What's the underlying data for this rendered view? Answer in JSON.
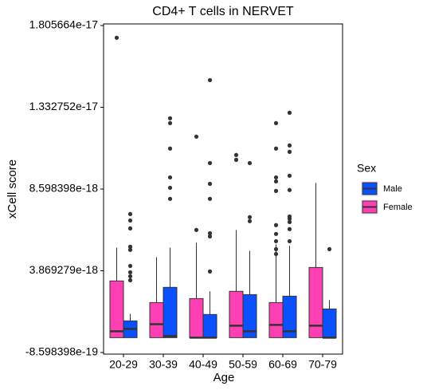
{
  "chart_data": {
    "type": "box",
    "title": "CD4+ T cells in NERVET",
    "x_label": "Age",
    "y_label": "xCell score",
    "legend_title": "Sex",
    "legend_position": "right",
    "grid": false,
    "categories": [
      "20-29",
      "30-39",
      "40-49",
      "50-59",
      "60-69",
      "70-79"
    ],
    "ylim": [
      -9.52e-19,
      1.815e-17
    ],
    "yticks": [
      {
        "value": -8.598398e-19,
        "label": "-8.598398e-19"
      },
      {
        "value": 3.869279e-18,
        "label": "3.869279e-18"
      },
      {
        "value": 8.598398e-18,
        "label": "8.598398e-18"
      },
      {
        "value": 1.332752e-17,
        "label": "1.332752e-17"
      },
      {
        "value": 1.805664e-17,
        "label": "1.805664e-17"
      }
    ],
    "series": [
      {
        "name": "Female",
        "color": "#ff40b4",
        "min": [
          0,
          0,
          0,
          0,
          0,
          0
        ],
        "q1": [
          0,
          0,
          0,
          0,
          0,
          0
        ],
        "median": [
          3.7e-19,
          7.8e-19,
          0,
          6.9e-19,
          7.4e-19,
          6.9e-19
        ],
        "q3": [
          3.28e-18,
          2.03e-18,
          2.26e-18,
          2.68e-18,
          2.03e-18,
          4.06e-18
        ],
        "max": [
          5.21e-18,
          4.66e-18,
          5.49e-18,
          6.23e-18,
          5.4e-18,
          8.95e-18
        ],
        "outliers": [
          [
            1.735e-17
          ],
          [],
          [
            1.163e-17,
            6.23e-18
          ],
          [
            1.057e-17,
            1.029e-17
          ],
          [
            1.241e-17,
            1.094e-17,
            9.27e-18,
            9.04e-18,
            8.49e-18,
            6.51e-18,
            6e-18,
            5.58e-18,
            5.12e-18,
            4.84e-18
          ],
          []
        ]
      },
      {
        "name": "Male",
        "color": "#0a50ff",
        "min": [
          0,
          0,
          0,
          0,
          0,
          0
        ],
        "q1": [
          0,
          0,
          0,
          0,
          0,
          0
        ],
        "median": [
          5.1e-19,
          9e-20,
          0,
          3.7e-19,
          3.7e-19,
          0
        ],
        "q3": [
          9.7e-19,
          2.91e-18,
          1.34e-18,
          2.49e-18,
          2.4e-18,
          1.66e-18
        ],
        "max": [
          1.38e-18,
          5.21e-18,
          2.68e-18,
          5.03e-18,
          5.31e-18,
          2.17e-18
        ],
        "outliers": [
          [
            7.15e-18,
            6.78e-18,
            6.32e-18,
            5.26e-18,
            5.08e-18,
            4.15e-18,
            3.78e-18,
            3.55e-18,
            3.32e-18
          ],
          [
            1.269e-17,
            1.241e-17,
            1.094e-17,
            9.27e-18,
            8.67e-18,
            8.03e-18
          ],
          [
            1.49e-17,
            1.01e-17,
            8.9e-18,
            8.03e-18,
            6.04e-18,
            5.86e-18,
            3.83e-18
          ],
          [
            1.01e-17,
            6.97e-18,
            6.74e-18
          ],
          [
            1.301e-17,
            1.112e-17,
            1.075e-17,
            9.37e-18,
            8.54e-18,
            7.01e-18,
            6.88e-18,
            6.69e-18,
            6.28e-18,
            5.58e-18
          ],
          [
            5.12e-18
          ]
        ]
      }
    ]
  }
}
